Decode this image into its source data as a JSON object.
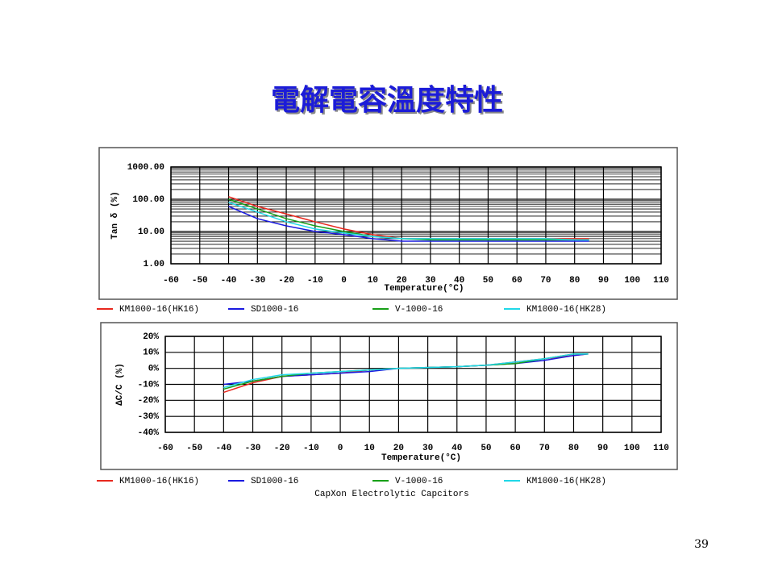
{
  "header": {
    "title": "電解電容溫度特性"
  },
  "caption": "CapXon Electrolytic Capcitors",
  "page_number": "39",
  "chart_data": [
    {
      "type": "line",
      "xlabel": "Temperature(°C)",
      "ylabel": "Tan δ (%)",
      "log_y": true,
      "grid": true,
      "legend": "bottom",
      "x": [
        -40,
        -30,
        -20,
        -10,
        0,
        10,
        20,
        30,
        40,
        50,
        60,
        70,
        80,
        85
      ],
      "xlim": [
        -60,
        110
      ],
      "xticks": [
        -60,
        -50,
        -40,
        -30,
        -20,
        -10,
        0,
        10,
        20,
        30,
        40,
        50,
        60,
        70,
        80,
        90,
        100,
        110
      ],
      "ylim": [
        1,
        1000
      ],
      "yticks": [
        {
          "value": 1,
          "label": "1.00"
        },
        {
          "value": 10,
          "label": "10.00"
        },
        {
          "value": 100,
          "label": "100.00"
        },
        {
          "value": 1000,
          "label": "1000.00"
        }
      ],
      "series": [
        {
          "name": "KM1000-16(HK16)",
          "color": "#e8281e",
          "values": [
            120,
            60,
            35,
            20,
            12,
            8,
            6,
            6,
            6,
            6,
            6,
            6,
            6,
            6
          ]
        },
        {
          "name": "SD1000-16",
          "color": "#1a1ae0",
          "values": [
            60,
            25,
            15,
            10,
            8,
            6,
            5,
            5,
            5,
            5,
            5,
            5,
            5,
            5
          ]
        },
        {
          "name": "V-1000-16",
          "color": "#18a018",
          "values": [
            100,
            50,
            25,
            15,
            10,
            7,
            6,
            5.5,
            5.5,
            5.5,
            5.5,
            5.5,
            5.5,
            5.5
          ]
        },
        {
          "name": "KM1000-16(HK28)",
          "color": "#20d8e8",
          "values": [
            80,
            40,
            20,
            12,
            9,
            7,
            6,
            6,
            6,
            6,
            6,
            6,
            5.5,
            5.5
          ]
        }
      ]
    },
    {
      "type": "line",
      "xlabel": "Temperature(°C)",
      "ylabel": "ΔC/C (%)",
      "log_y": false,
      "grid": true,
      "legend": "bottom",
      "x": [
        -40,
        -30,
        -20,
        -10,
        0,
        10,
        20,
        30,
        40,
        50,
        60,
        70,
        80,
        85
      ],
      "xlim": [
        -60,
        110
      ],
      "xticks": [
        -60,
        -50,
        -40,
        -30,
        -20,
        -10,
        0,
        10,
        20,
        30,
        40,
        50,
        60,
        70,
        80,
        90,
        100,
        110
      ],
      "ylim": [
        -40,
        20
      ],
      "yticks": [
        {
          "value": 20,
          "label": "20%"
        },
        {
          "value": 10,
          "label": "10%"
        },
        {
          "value": 0,
          "label": "0%"
        },
        {
          "value": -10,
          "label": "-10%"
        },
        {
          "value": -20,
          "label": "-20%"
        },
        {
          "value": -30,
          "label": "-30%"
        },
        {
          "value": -40,
          "label": "-40%"
        }
      ],
      "series": [
        {
          "name": "KM1000-16(HK16)",
          "color": "#e8281e",
          "values": [
            -15,
            -9,
            -5,
            -4,
            -3,
            -1,
            0,
            0.5,
            1,
            2,
            4,
            6,
            8,
            9
          ]
        },
        {
          "name": "SD1000-16",
          "color": "#1a1ae0",
          "values": [
            -10,
            -8,
            -5,
            -4,
            -3,
            -2,
            0,
            0.5,
            1,
            2,
            3,
            5,
            8,
            9
          ]
        },
        {
          "name": "V-1000-16",
          "color": "#18a018",
          "values": [
            -13,
            -8,
            -5,
            -3,
            -2,
            -1,
            0,
            0.5,
            1,
            2,
            3,
            6,
            9,
            9
          ]
        },
        {
          "name": "KM1000-16(HK28)",
          "color": "#20d8e8",
          "values": [
            -12,
            -7,
            -4,
            -3,
            -2,
            -1,
            0,
            0.5,
            1,
            2,
            4,
            6,
            9,
            9
          ]
        }
      ]
    }
  ]
}
